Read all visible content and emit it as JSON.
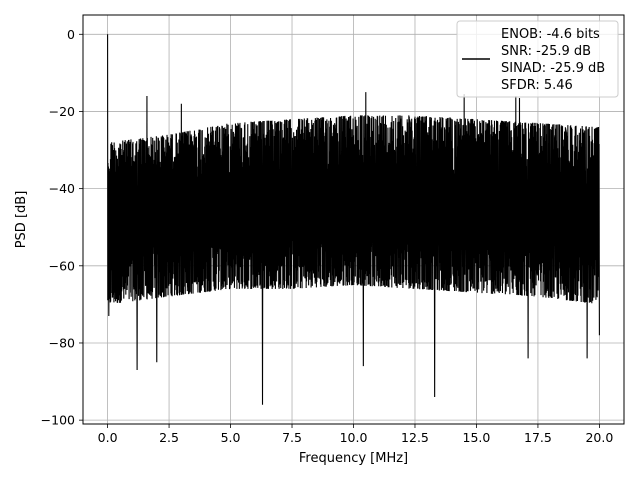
{
  "chart_data": {
    "type": "line",
    "title": "",
    "xlabel": "Frequency [MHz]",
    "ylabel": "PSD [dB]",
    "xlim": [
      -1,
      21
    ],
    "ylim": [
      -101,
      5
    ],
    "xticks": [
      0.0,
      2.5,
      5.0,
      7.5,
      10.0,
      12.5,
      15.0,
      17.5,
      20.0
    ],
    "xtick_labels": [
      "0.0",
      "2.5",
      "5.0",
      "7.5",
      "10.0",
      "12.5",
      "15.0",
      "17.5",
      "20.0"
    ],
    "yticks": [
      0,
      -20,
      -40,
      -60,
      -80,
      -100
    ],
    "ytick_labels": [
      "0",
      "−20",
      "−40",
      "−60",
      "−80",
      "−100"
    ],
    "grid": true,
    "legend_position": "upper-right",
    "series": [
      {
        "name": "ENOB: -4.6 bits\nSNR: -25.9 dB\nSINAD: -25.9 dB\nSFDR: 5.46",
        "color": "#000000",
        "upper_envelope": [
          [
            0.0,
            -28
          ],
          [
            2.5,
            -26
          ],
          [
            5.0,
            -23
          ],
          [
            7.5,
            -22
          ],
          [
            10.0,
            -21
          ],
          [
            12.5,
            -21
          ],
          [
            15.0,
            -22
          ],
          [
            17.5,
            -23
          ],
          [
            20.0,
            -24
          ]
        ],
        "lower_envelope": [
          [
            0.0,
            -70
          ],
          [
            2.5,
            -68
          ],
          [
            5.0,
            -66
          ],
          [
            7.5,
            -66
          ],
          [
            10.0,
            -65
          ],
          [
            12.5,
            -66
          ],
          [
            15.0,
            -67
          ],
          [
            17.5,
            -68
          ],
          [
            20.0,
            -70
          ]
        ],
        "peaks": [
          {
            "x": 0.0,
            "y": 0
          },
          {
            "x": 1.6,
            "y": -16
          },
          {
            "x": 3.0,
            "y": -18
          },
          {
            "x": 10.5,
            "y": -15
          },
          {
            "x": 14.5,
            "y": -15.5
          },
          {
            "x": 16.6,
            "y": -16
          },
          {
            "x": 16.75,
            "y": -16.5
          }
        ],
        "dips": [
          {
            "x": 0.05,
            "y": -73
          },
          {
            "x": 1.2,
            "y": -87
          },
          {
            "x": 2.0,
            "y": -85
          },
          {
            "x": 6.3,
            "y": -96
          },
          {
            "x": 10.4,
            "y": -86
          },
          {
            "x": 13.3,
            "y": -94
          },
          {
            "x": 17.1,
            "y": -84
          },
          {
            "x": 19.5,
            "y": -84
          },
          {
            "x": 20.0,
            "y": -78
          }
        ]
      }
    ]
  }
}
